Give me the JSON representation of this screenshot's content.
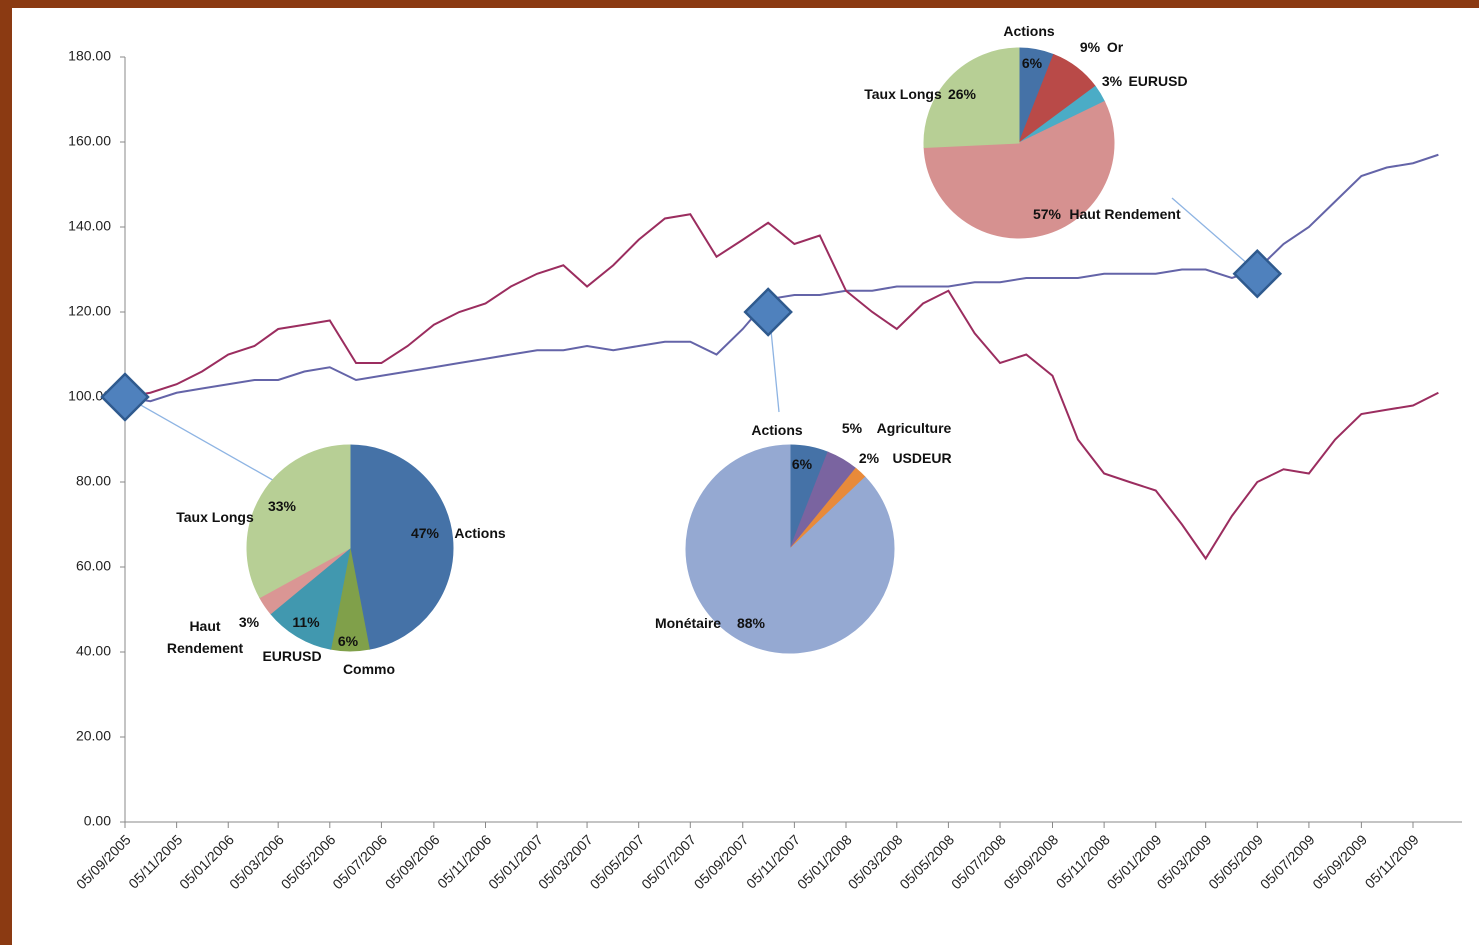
{
  "chart_data": [
    {
      "type": "line",
      "x": [
        "05/09/2005",
        "05/10/2005",
        "05/11/2005",
        "05/12/2005",
        "05/01/2006",
        "05/02/2006",
        "05/03/2006",
        "05/04/2006",
        "05/05/2006",
        "05/06/2006",
        "05/07/2006",
        "05/08/2006",
        "05/09/2006",
        "05/10/2006",
        "05/11/2006",
        "05/12/2006",
        "05/01/2007",
        "05/02/2007",
        "05/03/2007",
        "05/04/2007",
        "05/05/2007",
        "05/06/2007",
        "05/07/2007",
        "05/08/2007",
        "05/09/2007",
        "05/10/2007",
        "05/11/2007",
        "05/12/2007",
        "05/01/2008",
        "05/02/2008",
        "05/03/2008",
        "05/04/2008",
        "05/05/2008",
        "05/06/2008",
        "05/07/2008",
        "05/08/2008",
        "05/09/2008",
        "05/10/2008",
        "05/11/2008",
        "05/12/2008",
        "05/01/2009",
        "05/02/2009",
        "05/03/2009",
        "05/04/2009",
        "05/05/2009",
        "05/06/2009",
        "05/07/2009",
        "05/08/2009",
        "05/09/2009",
        "05/10/2009",
        "05/11/2009",
        "05/12/2009"
      ],
      "series": [
        {
          "color": "#9b2d5f",
          "values": [
            100,
            101,
            103,
            106,
            110,
            112,
            116,
            117,
            118,
            108,
            108,
            112,
            117,
            120,
            122,
            126,
            129,
            131,
            126,
            131,
            137,
            142,
            143,
            133,
            137,
            141,
            136,
            138,
            125,
            120,
            116,
            122,
            125,
            115,
            108,
            110,
            105,
            90,
            82,
            80,
            78,
            70,
            62,
            72,
            80,
            83,
            82,
            90,
            96,
            97,
            98,
            101
          ]
        },
        {
          "color": "#6464a8",
          "values": [
            100,
            99,
            101,
            102,
            103,
            104,
            104,
            106,
            107,
            104,
            105,
            106,
            107,
            108,
            109,
            110,
            111,
            111,
            112,
            111,
            112,
            113,
            113,
            110,
            116,
            123,
            124,
            124,
            125,
            125,
            126,
            126,
            126,
            127,
            127,
            128,
            128,
            128,
            129,
            129,
            129,
            130,
            130,
            128,
            130,
            136,
            140,
            146,
            152,
            154,
            155,
            157
          ]
        }
      ],
      "markers": [
        {
          "x": "05/09/2005",
          "y": 100
        },
        {
          "x": "05/10/2007",
          "y": 120
        },
        {
          "x": "05/05/2009",
          "y": 129
        }
      ],
      "ylim": [
        0,
        180
      ],
      "yticks": [
        {
          "value": 0,
          "label": "0.00"
        },
        {
          "value": 20,
          "label": "20.00"
        },
        {
          "value": 40,
          "label": "40.00"
        },
        {
          "value": 60,
          "label": "60.00"
        },
        {
          "value": 80,
          "label": "80.00"
        },
        {
          "value": 100,
          "label": "100.00"
        },
        {
          "value": 120,
          "label": "120.00"
        },
        {
          "value": 140,
          "label": "140.00"
        },
        {
          "value": 160,
          "label": "160.00"
        },
        {
          "value": 180,
          "label": "180.00"
        }
      ],
      "xticks": [
        "05/09/2005",
        "05/11/2005",
        "05/01/2006",
        "05/03/2006",
        "05/05/2006",
        "05/07/2006",
        "05/09/2006",
        "05/11/2006",
        "05/01/2007",
        "05/03/2007",
        "05/05/2007",
        "05/07/2007",
        "05/09/2007",
        "05/11/2007",
        "05/01/2008",
        "05/03/2008",
        "05/05/2008",
        "05/07/2008",
        "05/09/2008",
        "05/11/2008",
        "05/01/2009",
        "05/03/2009",
        "05/05/2009",
        "05/07/2009",
        "05/09/2009",
        "05/11/2009"
      ]
    },
    {
      "type": "pie",
      "categories": [
        "Actions",
        "Commo",
        "EURUSD",
        "Haut Rendement",
        "Taux Longs"
      ],
      "values": [
        47,
        6,
        11,
        3,
        33
      ],
      "value_labels": [
        "47%",
        "6%",
        "11%",
        "3%",
        "33%"
      ],
      "colors": [
        "#4572a7",
        "#80a04a",
        "#4198af",
        "#da9694",
        "#b7cf95"
      ]
    },
    {
      "type": "pie",
      "categories": [
        "Actions",
        "Agriculture",
        "USDEUR",
        "Monétaire"
      ],
      "values": [
        6,
        5,
        2,
        88
      ],
      "value_labels": [
        "6%",
        "5%",
        "2%",
        "88%"
      ],
      "colors": [
        "#4572a7",
        "#7a64a0",
        "#e88a3a",
        "#95a9d2"
      ]
    },
    {
      "type": "pie",
      "categories": [
        "Actions",
        "Or",
        "EURUSD",
        "Haut Rendement",
        "Taux Longs"
      ],
      "values": [
        6,
        9,
        3,
        57,
        26
      ],
      "value_labels": [
        "6%",
        "9%",
        "3%",
        "57%",
        "26%"
      ],
      "colors": [
        "#4572a7",
        "#b94a48",
        "#4bacc6",
        "#d69190",
        "#b7cf95"
      ]
    }
  ]
}
